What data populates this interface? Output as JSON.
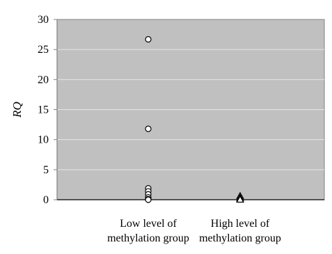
{
  "chart_data": {
    "type": "scatter",
    "ylabel": "RQ",
    "xlabel": "",
    "ylim": [
      0,
      30
    ],
    "yticks": [
      0,
      5,
      10,
      15,
      20,
      25,
      30
    ],
    "grid": true,
    "categories": [
      [
        "Low level of",
        "methylation group"
      ],
      [
        "High level of",
        "methylation group"
      ]
    ],
    "series": [
      {
        "category_index": 0,
        "marker": "circle",
        "values": [
          26.7,
          11.8,
          1.9,
          1.4,
          0.9,
          0.4,
          0.1,
          0.0
        ]
      },
      {
        "category_index": 1,
        "marker": "triangle",
        "values": [
          0.6,
          0.3,
          0.1,
          0.0
        ]
      }
    ],
    "colors": {
      "plot_bg": "#c0c0c0",
      "grid": "#e6e6e6",
      "axis": "#808080",
      "marker_fill": "#ffffff",
      "marker_stroke": "#000000"
    }
  }
}
